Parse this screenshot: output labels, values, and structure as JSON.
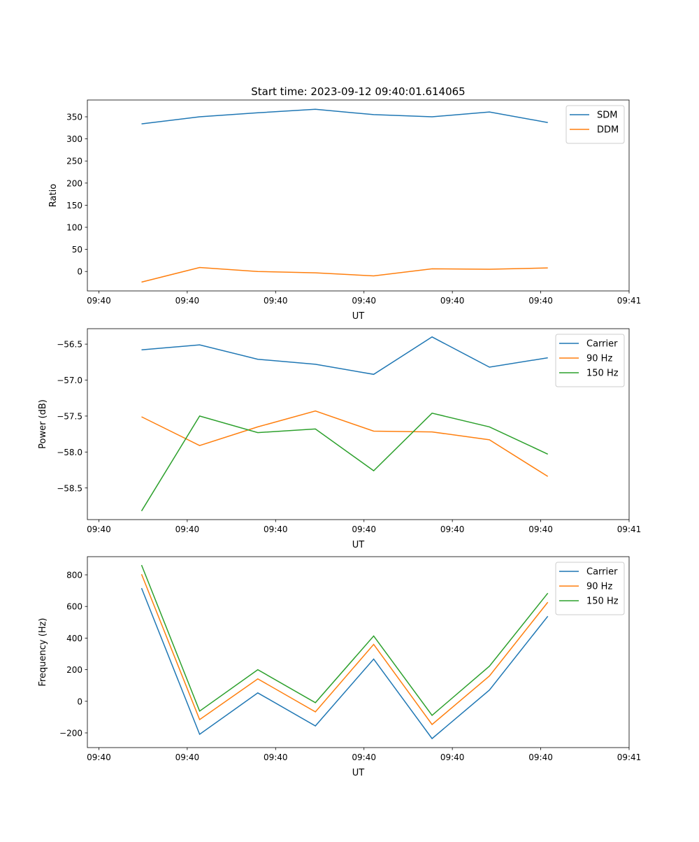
{
  "chart_data": [
    {
      "type": "line",
      "title": "Start time: 2023-09-12 09:40:01.614065",
      "xlabel": "UT",
      "ylabel": "Ratio",
      "x_unit": "seconds after 09:40:00",
      "x": [
        4.83,
        11.4,
        17.98,
        24.5,
        31.1,
        37.7,
        44.2,
        50.8
      ],
      "xlim": [
        -1.3,
        60
      ],
      "xticks": [
        0,
        10,
        20,
        30,
        40,
        50,
        60
      ],
      "xtick_labels": [
        "09:40",
        "09:40",
        "09:40",
        "09:40",
        "09:40",
        "09:40",
        "09:41"
      ],
      "ylim": [
        -44,
        388
      ],
      "yticks": [
        0,
        50,
        100,
        150,
        200,
        250,
        300,
        350
      ],
      "ytick_labels": [
        "0",
        "50",
        "100",
        "150",
        "200",
        "250",
        "300",
        "350"
      ],
      "legend": "top-right",
      "grid": false,
      "series": [
        {
          "name": "SDM",
          "color": "#1f77b4",
          "values": [
            334,
            350,
            359,
            367,
            355,
            350,
            361,
            337
          ]
        },
        {
          "name": "DDM",
          "color": "#ff7f0e",
          "values": [
            -24,
            9,
            0,
            -3,
            -10,
            6,
            5,
            8
          ]
        }
      ]
    },
    {
      "type": "line",
      "title": "",
      "xlabel": "UT",
      "ylabel": "Power (dB)",
      "x_unit": "seconds after 09:40:00",
      "x": [
        4.83,
        11.4,
        17.98,
        24.5,
        31.1,
        37.7,
        44.2,
        50.8
      ],
      "xlim": [
        -1.3,
        60
      ],
      "xticks": [
        0,
        10,
        20,
        30,
        40,
        50,
        60
      ],
      "xtick_labels": [
        "09:40",
        "09:40",
        "09:40",
        "09:40",
        "09:40",
        "09:40",
        "09:41"
      ],
      "ylim": [
        -58.94,
        -56.285
      ],
      "yticks": [
        -58.5,
        -58.0,
        -57.5,
        -57.0,
        -56.5
      ],
      "ytick_labels": [
        "−58.5",
        "−58.0",
        "−57.5",
        "−57.0",
        "−56.5"
      ],
      "legend": "top-right",
      "grid": false,
      "series": [
        {
          "name": "Carrier",
          "color": "#1f77b4",
          "values": [
            -56.58,
            -56.51,
            -56.71,
            -56.78,
            -56.92,
            -56.4,
            -56.82,
            -56.69
          ]
        },
        {
          "name": "90 Hz",
          "color": "#ff7f0e",
          "values": [
            -57.51,
            -57.91,
            -57.65,
            -57.43,
            -57.71,
            -57.72,
            -57.83,
            -58.34
          ]
        },
        {
          "name": "150 Hz",
          "color": "#2ca02c",
          "values": [
            -58.82,
            -57.5,
            -57.73,
            -57.68,
            -58.26,
            -57.46,
            -57.65,
            -58.03
          ]
        }
      ]
    },
    {
      "type": "line",
      "title": "",
      "xlabel": "UT",
      "ylabel": "Frequency (Hz)",
      "x_unit": "seconds after 09:40:00",
      "x": [
        4.83,
        11.4,
        17.98,
        24.5,
        31.1,
        37.7,
        44.2,
        50.8
      ],
      "xlim": [
        -1.3,
        60
      ],
      "xticks": [
        0,
        10,
        20,
        30,
        40,
        50,
        60
      ],
      "xtick_labels": [
        "09:40",
        "09:40",
        "09:40",
        "09:40",
        "09:40",
        "09:40",
        "09:41"
      ],
      "ylim": [
        -293,
        915
      ],
      "yticks": [
        -200,
        0,
        200,
        400,
        600,
        800
      ],
      "ytick_labels": [
        "−200",
        "0",
        "200",
        "400",
        "600",
        "800"
      ],
      "legend": "top-right",
      "grid": false,
      "series": [
        {
          "name": "Carrier",
          "color": "#1f77b4",
          "values": [
            716,
            -209,
            53,
            -156,
            267,
            -236,
            71,
            538
          ]
        },
        {
          "name": "90 Hz",
          "color": "#ff7f0e",
          "values": [
            804,
            -116,
            142,
            -67,
            360,
            -147,
            160,
            627
          ]
        },
        {
          "name": "150 Hz",
          "color": "#2ca02c",
          "values": [
            862,
            -62,
            200,
            -9,
            413,
            -89,
            222,
            684
          ]
        }
      ]
    }
  ]
}
